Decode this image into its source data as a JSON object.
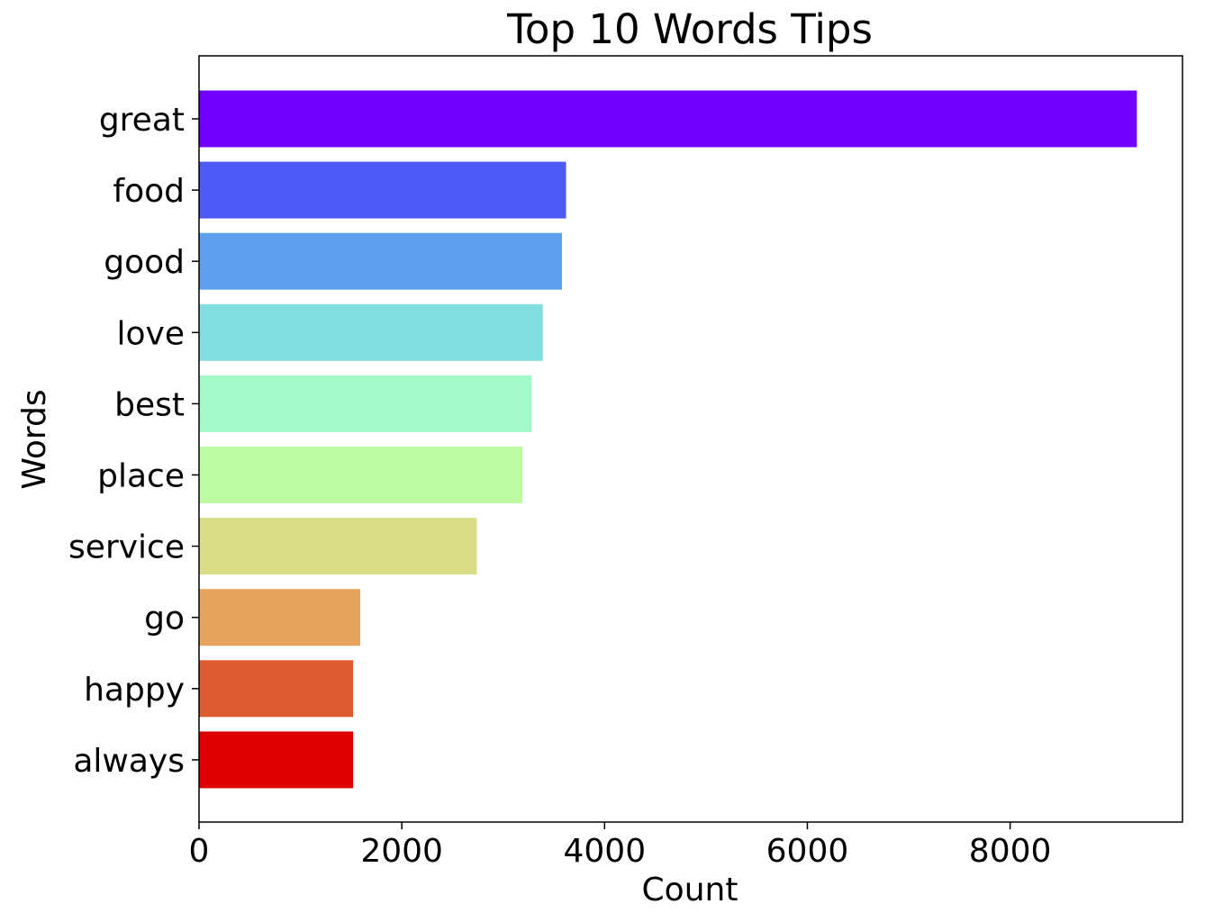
{
  "chart_data": {
    "type": "bar",
    "orientation": "horizontal",
    "title": "Top 10 Words Tips",
    "xlabel": "Count",
    "ylabel": "Words",
    "categories": [
      "great",
      "food",
      "good",
      "love",
      "best",
      "place",
      "service",
      "go",
      "happy",
      "always"
    ],
    "values": [
      9250,
      3620,
      3580,
      3390,
      3280,
      3190,
      2740,
      1590,
      1520,
      1520
    ],
    "colors": [
      "#7000ff",
      "#4e5af8",
      "#5ca0ef",
      "#80dede",
      "#a2fac8",
      "#bcfba2",
      "#dadc86",
      "#e8a45c",
      "#e05a30",
      "#dc0000"
    ],
    "xlim": [
      0,
      9700
    ],
    "xticks": [
      0,
      2000,
      4000,
      6000,
      8000
    ],
    "xtick_labels": [
      "0",
      "2000",
      "4000",
      "6000",
      "8000"
    ],
    "grid": false,
    "legend": "none"
  }
}
